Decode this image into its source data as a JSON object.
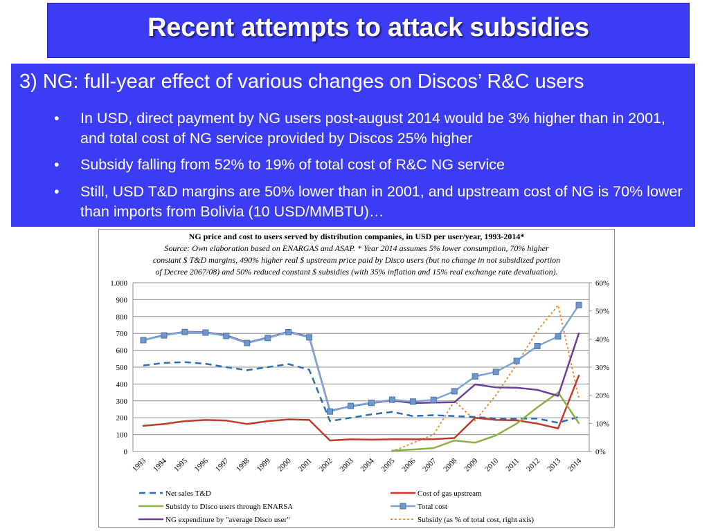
{
  "slide": {
    "title": "Recent attempts to attack subsidies",
    "subtitle": "3) NG: full-year effect of various changes on Discos’ R&C users",
    "bullet_marker": "•",
    "bullets": [
      "In USD, direct payment by NG users post-august 2014 would be 3% higher than in 2001, and total cost of NG service provided by Discos 25% higher",
      "Subsidy falling from 52% to 19% of total cost of R&C NG service",
      "Still, USD T&D margins are 50% lower than in 2001, and upstream cost of NG is 70% lower than imports from Bolivia (10 USD/MMBTU)…"
    ],
    "colors": {
      "title_bg": "#3c3cf5",
      "content_bg": "#3c3cf5",
      "text": "#ffffff"
    }
  },
  "chart_data": {
    "type": "line",
    "title": "NG price and cost to users served by distribution companies, in USD per user/year, 1993-2014*",
    "source_lines": [
      "Source: Own elaboration based on ENARGAS and ASAP. * Year 2014 assumes 5% lower consumption, 70% higher",
      "constant $ T&D margins, 490% higher real $ upstream price paid by Disco users (but no change in not subsidized portion",
      "of Decree 2067/08) and 50% reduced constant $ subsidies (with 35% inflation and 15% real exchange rate devaluation)."
    ],
    "x": [
      "1993",
      "1994",
      "1995",
      "1996",
      "1997",
      "1998",
      "1999",
      "2000",
      "2001",
      "2002",
      "2003",
      "2004",
      "2005",
      "2006",
      "2007",
      "2008",
      "2009",
      "2010",
      "2011",
      "2012",
      "2013",
      "2014"
    ],
    "y_left": {
      "range": [
        0,
        1000
      ],
      "ticks": [
        0,
        100,
        200,
        300,
        400,
        500,
        600,
        700,
        800,
        900,
        1000
      ],
      "tick_labels": [
        "0",
        "100",
        "200",
        "300",
        "400",
        "500",
        "600",
        "700",
        "800",
        "900",
        "1.000"
      ]
    },
    "y_right": {
      "range": [
        0,
        60
      ],
      "ticks": [
        0,
        10,
        20,
        30,
        40,
        50,
        60
      ],
      "tick_labels": [
        "0%",
        "10%",
        "20%",
        "30%",
        "40%",
        "50%",
        "60%"
      ]
    },
    "grid": true,
    "legend_position": "bottom",
    "series": [
      {
        "name": "Net sales T&D",
        "color": "#2e6db4",
        "style": "dash",
        "axis": "left",
        "values": [
          510,
          525,
          530,
          520,
          500,
          482,
          500,
          518,
          485,
          180,
          200,
          220,
          235,
          210,
          215,
          210,
          205,
          195,
          195,
          195,
          170,
          205
        ]
      },
      {
        "name": "Cost of gas upstream",
        "color": "#c0392b",
        "style": "solid",
        "axis": "left",
        "values": [
          152,
          163,
          180,
          187,
          183,
          163,
          180,
          190,
          187,
          65,
          72,
          70,
          72,
          72,
          73,
          80,
          200,
          187,
          185,
          165,
          137,
          450
        ]
      },
      {
        "name": "Subsidy to Disco users through ENARSA",
        "color": "#8db044",
        "style": "solid",
        "axis": "left",
        "values": [
          null,
          null,
          null,
          null,
          null,
          null,
          null,
          null,
          null,
          null,
          null,
          null,
          5,
          12,
          20,
          65,
          52,
          95,
          165,
          262,
          350,
          168
        ]
      },
      {
        "name": "Total cost",
        "color": "#7ca4d4",
        "style": "solid-square",
        "axis": "left",
        "values": [
          660,
          688,
          708,
          705,
          685,
          643,
          673,
          707,
          677,
          237,
          270,
          288,
          307,
          296,
          306,
          357,
          445,
          472,
          537,
          625,
          682,
          868
        ]
      },
      {
        "name": "NG expenditure by \"average Disco user\"",
        "color": "#6b3e9c",
        "style": "solid",
        "axis": "left",
        "values": [
          660,
          690,
          710,
          707,
          688,
          645,
          675,
          710,
          680,
          240,
          268,
          287,
          303,
          287,
          290,
          292,
          398,
          380,
          378,
          365,
          330,
          700
        ]
      },
      {
        "name": "Subsidy (as % of total cost, right axis)",
        "color": "#e8913a",
        "style": "dot",
        "axis": "right",
        "values": [
          null,
          null,
          null,
          null,
          null,
          null,
          null,
          null,
          null,
          null,
          null,
          null,
          0,
          3,
          6,
          18,
          11,
          20,
          31,
          43,
          52,
          19
        ]
      }
    ]
  }
}
